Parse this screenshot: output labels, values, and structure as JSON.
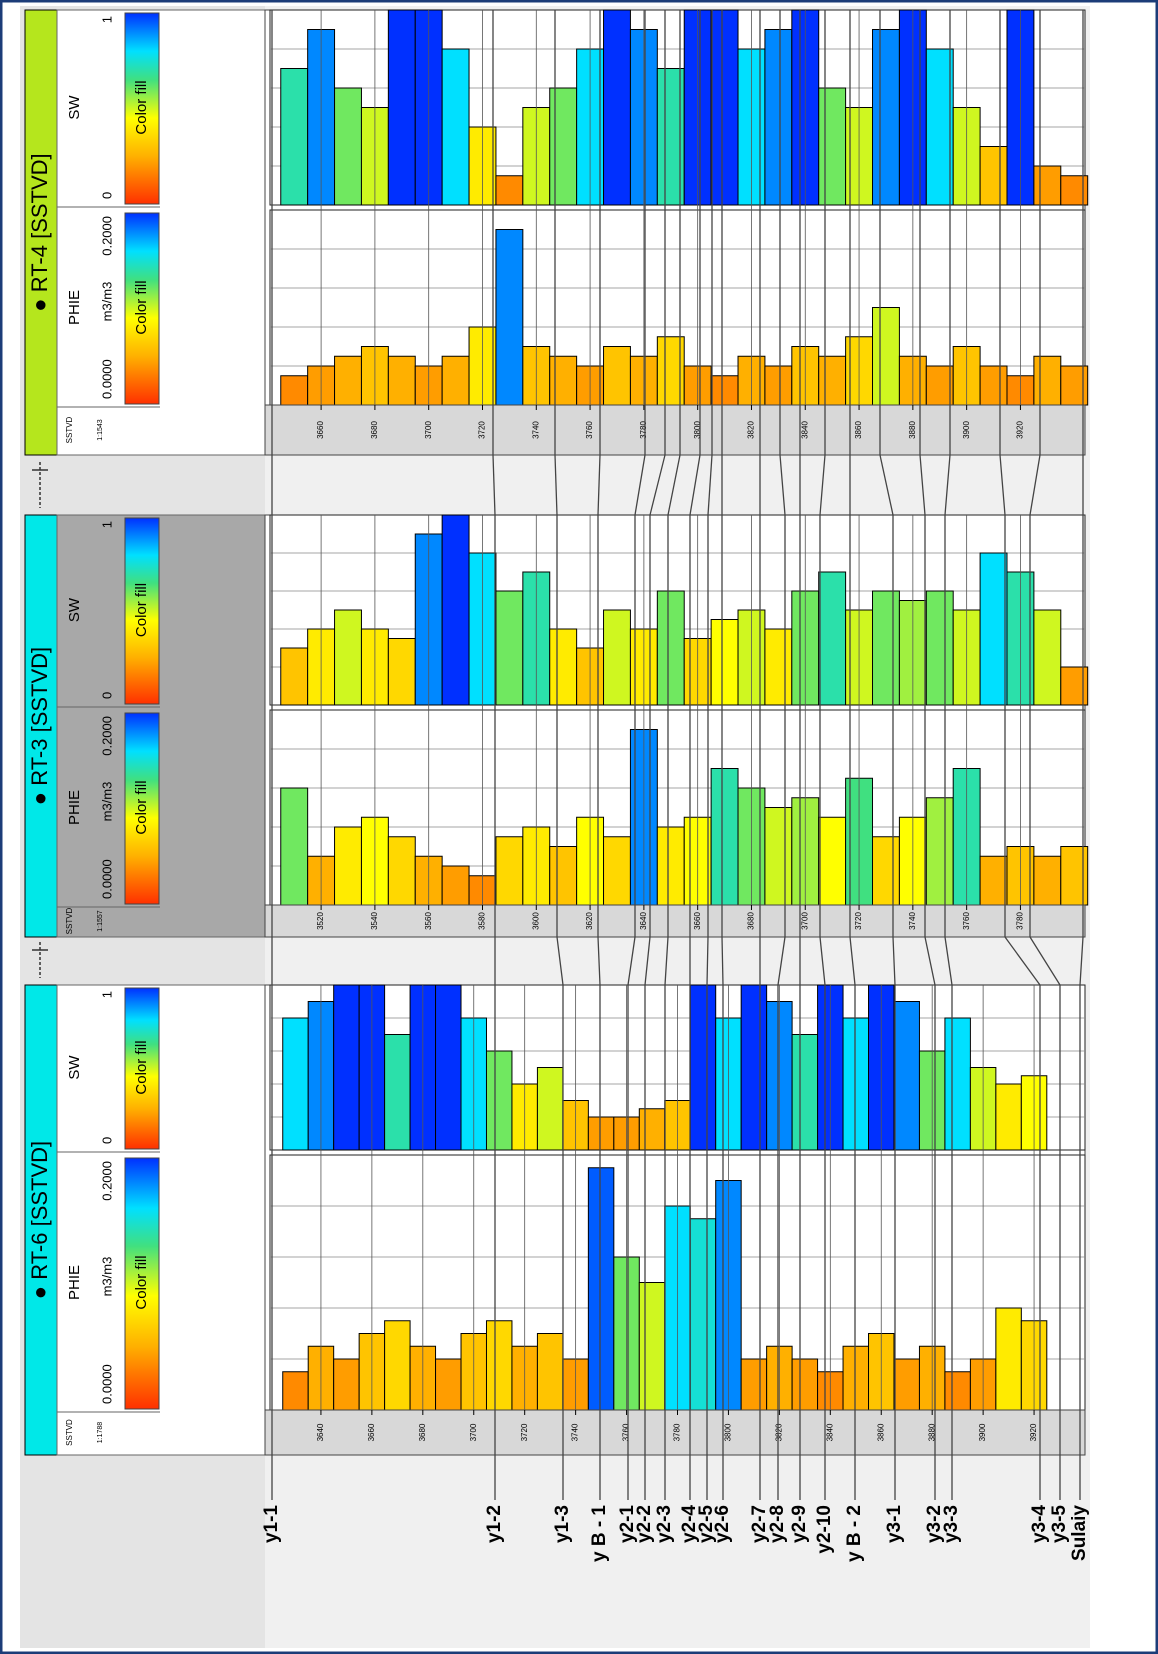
{
  "wells": [
    {
      "name": "● RT-4 [SSTVD]",
      "color": "#b5e61d",
      "depth_label": "SSTVD",
      "depth_scale": "1:1543",
      "depth_lim": [
        3641,
        3944
      ],
      "depth_ticks": [
        3660,
        3680,
        3700,
        3720,
        3740,
        3760,
        3780,
        3800,
        3820,
        3840,
        3860,
        3880,
        3900,
        3920
      ],
      "depth": [
        3645,
        3655,
        3665,
        3675,
        3685,
        3695,
        3705,
        3715,
        3725,
        3735,
        3745,
        3755,
        3765,
        3775,
        3785,
        3795,
        3805,
        3815,
        3825,
        3835,
        3845,
        3855,
        3865,
        3875,
        3885,
        3895,
        3905,
        3915,
        3925,
        3935
      ],
      "tracks": [
        {
          "name": "SW",
          "scale": [
            0,
            1
          ],
          "fill_label": "Color fill",
          "values": [
            0.7,
            0.9,
            0.6,
            0.5,
            1.0,
            1.0,
            0.8,
            0.4,
            0.15,
            0.5,
            0.6,
            0.8,
            1.0,
            0.9,
            0.7,
            1.0,
            1.0,
            0.8,
            0.9,
            1.0,
            0.6,
            0.5,
            0.9,
            1.0,
            0.8,
            0.5,
            0.3,
            1.0,
            0.2,
            0.15
          ]
        },
        {
          "name": "PHIE",
          "scale": [
            {
              "value": 0,
              "label": "0.0000"
            },
            {
              "value": 0.2,
              "label": "0.2000"
            }
          ],
          "unit": "m3/m3",
          "fill_label": "Color fill",
          "values": [
            0.03,
            0.04,
            0.05,
            0.06,
            0.05,
            0.04,
            0.05,
            0.08,
            0.18,
            0.06,
            0.05,
            0.04,
            0.06,
            0.05,
            0.07,
            0.04,
            0.03,
            0.05,
            0.04,
            0.06,
            0.05,
            0.07,
            0.1,
            0.05,
            0.04,
            0.06,
            0.04,
            0.03,
            0.05,
            0.04
          ]
        }
      ]
    },
    {
      "name": "● RT-3 [SSTVD]",
      "color": "#00e8e8",
      "depth_label": "SSTVD",
      "depth_scale": "1:1557",
      "depth_lim": [
        3501,
        3804
      ],
      "depth_ticks": [
        3520,
        3540,
        3560,
        3580,
        3600,
        3620,
        3640,
        3660,
        3680,
        3700,
        3720,
        3740,
        3760,
        3780
      ],
      "depth": [
        3505,
        3515,
        3525,
        3535,
        3545,
        3555,
        3565,
        3575,
        3585,
        3595,
        3605,
        3615,
        3625,
        3635,
        3645,
        3655,
        3665,
        3675,
        3685,
        3695,
        3705,
        3715,
        3725,
        3735,
        3745,
        3755,
        3765,
        3775,
        3785,
        3795
      ],
      "tracks": [
        {
          "name": "SW",
          "scale": [
            0,
            1
          ],
          "fill_label": "Color fill",
          "values": [
            0.3,
            0.4,
            0.5,
            0.4,
            0.35,
            0.9,
            1.0,
            0.8,
            0.6,
            0.7,
            0.4,
            0.3,
            0.5,
            0.4,
            0.6,
            0.35,
            0.45,
            0.5,
            0.4,
            0.6,
            0.7,
            0.5,
            0.6,
            0.55,
            0.6,
            0.5,
            0.8,
            0.7,
            0.5,
            0.2
          ]
        },
        {
          "name": "PHIE",
          "scale": [
            {
              "value": 0,
              "label": "0.0000"
            },
            {
              "value": 0.2,
              "label": "0.2000"
            }
          ],
          "unit": "m3/m3",
          "fill_label": "Color fill",
          "values": [
            0.12,
            0.05,
            0.08,
            0.09,
            0.07,
            0.05,
            0.04,
            0.03,
            0.07,
            0.08,
            0.06,
            0.09,
            0.07,
            0.18,
            0.08,
            0.09,
            0.14,
            0.12,
            0.1,
            0.11,
            0.09,
            0.13,
            0.07,
            0.09,
            0.11,
            0.14,
            0.05,
            0.06,
            0.05,
            0.06
          ]
        }
      ]
    },
    {
      "name": "● RT-6 [SSTVD]",
      "color": "#00e8e8",
      "depth_label": "SSTVD",
      "depth_scale": "1:1788",
      "depth_lim": [
        3620,
        3940
      ],
      "depth_ticks": [
        3640,
        3660,
        3680,
        3700,
        3720,
        3740,
        3760,
        3780,
        3800,
        3820,
        3840,
        3860,
        3880,
        3900,
        3920
      ],
      "depth": [
        3625,
        3635,
        3645,
        3655,
        3665,
        3675,
        3685,
        3695,
        3705,
        3715,
        3725,
        3735,
        3745,
        3755,
        3765,
        3775,
        3785,
        3795,
        3805,
        3815,
        3825,
        3835,
        3845,
        3855,
        3865,
        3875,
        3885,
        3895,
        3905,
        3915
      ],
      "tracks": [
        {
          "name": "SW",
          "scale": [
            0,
            1
          ],
          "fill_label": "Color fill",
          "values": [
            0.8,
            0.9,
            1.0,
            1.0,
            0.7,
            1.0,
            1.0,
            0.8,
            0.6,
            0.4,
            0.5,
            0.3,
            0.2,
            0.2,
            0.25,
            0.3,
            1.0,
            0.8,
            1.0,
            0.9,
            0.7,
            1.0,
            0.8,
            1.0,
            0.9,
            0.6,
            0.8,
            0.5,
            0.4,
            0.45
          ]
        },
        {
          "name": "PHIE",
          "scale": [
            {
              "value": 0,
              "label": "0.0000"
            },
            {
              "value": 0.2,
              "label": "0.2000"
            }
          ],
          "unit": "m3/m3",
          "fill_label": "Color fill",
          "values": [
            0.03,
            0.05,
            0.04,
            0.06,
            0.07,
            0.05,
            0.04,
            0.06,
            0.07,
            0.05,
            0.06,
            0.04,
            0.19,
            0.12,
            0.1,
            0.16,
            0.15,
            0.18,
            0.04,
            0.05,
            0.04,
            0.03,
            0.05,
            0.06,
            0.04,
            0.05,
            0.03,
            0.04,
            0.08,
            0.07
          ]
        }
      ]
    }
  ],
  "horizons": [
    "y1-1",
    "y1-2",
    "y1-3",
    "y B - 1",
    "y2-1",
    "y2-2",
    "y2-3",
    "y2-4",
    "y2-5",
    "y2-6",
    "y2-7",
    "y2-8",
    "y2-9",
    "y2-10",
    "y B - 2",
    "y3-1",
    "y3-2",
    "y3-3",
    "y3-4",
    "y3-5",
    "Sulaiy"
  ]
}
